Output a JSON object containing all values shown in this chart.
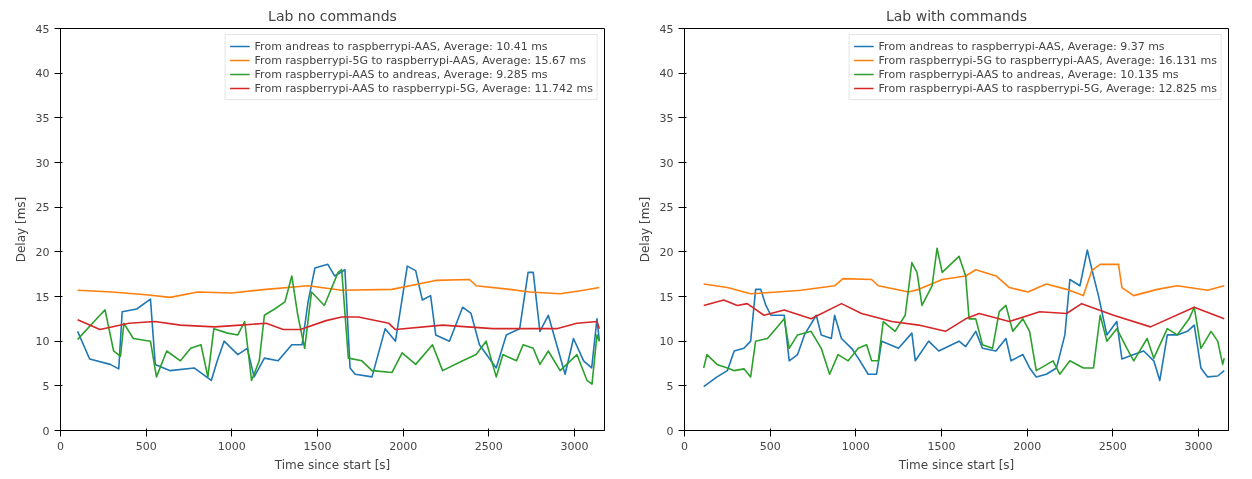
{
  "chart_data": [
    {
      "type": "line",
      "title": "Lab no commands",
      "xlabel": "Time since start [s]",
      "ylabel": "Delay [ms]",
      "xlim": [
        0,
        3175
      ],
      "ylim": [
        0,
        45
      ],
      "xticks": [
        0,
        500,
        1000,
        1500,
        2000,
        2500,
        3000
      ],
      "yticks": [
        0,
        5,
        10,
        15,
        20,
        25,
        30,
        35,
        40,
        45
      ],
      "grid": false,
      "legend": "top right",
      "line_style": "solid",
      "marker": "none",
      "series": [
        {
          "name": "From andreas to raspberrypi-AAS, Average: 10.41 ms",
          "color": "#1f77b4",
          "x": [
            100,
            170,
            290,
            340,
            360,
            445,
            525,
            553,
            640,
            780,
            880,
            915,
            955,
            1035,
            1090,
            1130,
            1190,
            1270,
            1350,
            1410,
            1445,
            1485,
            1560,
            1600,
            1660,
            1690,
            1720,
            1818,
            1895,
            1955,
            2024,
            2073,
            2112,
            2160,
            2190,
            2270,
            2347,
            2396,
            2445,
            2543,
            2602,
            2680,
            2729,
            2759,
            2798,
            2847,
            2896,
            2945,
            2994,
            3053,
            3100,
            3131,
            3145
          ],
          "values": [
            11.1,
            8.0,
            7.4,
            6.9,
            13.3,
            13.6,
            14.7,
            7.4,
            6.7,
            7.0,
            5.6,
            7.8,
            10.0,
            8.5,
            9.2,
            6.0,
            8.1,
            7.8,
            9.6,
            9.6,
            14.4,
            18.2,
            18.6,
            17.3,
            18.0,
            7.0,
            6.3,
            6.0,
            11.4,
            10.0,
            18.4,
            17.9,
            14.6,
            15.1,
            10.7,
            10.0,
            13.8,
            13.1,
            9.6,
            7.0,
            10.7,
            11.4,
            17.7,
            17.7,
            11.1,
            12.9,
            9.6,
            6.3,
            10.3,
            7.8,
            7.0,
            12.5,
            10.0
          ]
        },
        {
          "name": "From raspberrypi-5G to raspberrypi-AAS, Average: 15.67 ms",
          "color": "#ff7f0e",
          "x": [
            100,
            300,
            500,
            640,
            800,
            1000,
            1200,
            1445,
            1641,
            1935,
            2190,
            2387,
            2426,
            2622,
            2739,
            2916,
            3053,
            3145
          ],
          "values": [
            15.7,
            15.5,
            15.2,
            14.9,
            15.5,
            15.4,
            15.8,
            16.2,
            15.7,
            15.8,
            16.8,
            16.9,
            16.2,
            15.8,
            15.5,
            15.3,
            15.7,
            16.0
          ]
        },
        {
          "name": "From raspberrypi-AAS to andreas, Average: 9.285 ms",
          "color": "#2ca02c",
          "x": [
            100,
            230,
            260,
            310,
            350,
            370,
            425,
            525,
            560,
            620,
            700,
            760,
            820,
            860,
            895,
            975,
            1035,
            1075,
            1115,
            1160,
            1190,
            1250,
            1310,
            1350,
            1385,
            1425,
            1465,
            1540,
            1620,
            1641,
            1680,
            1759,
            1818,
            1935,
            1994,
            2073,
            2171,
            2230,
            2347,
            2426,
            2484,
            2543,
            2582,
            2661,
            2700,
            2759,
            2798,
            2847,
            2916,
            3014,
            3073,
            3102,
            3131,
            3145
          ],
          "values": [
            10.2,
            12.9,
            13.5,
            8.9,
            8.3,
            12.0,
            10.3,
            10.0,
            6.0,
            8.9,
            7.8,
            9.2,
            9.6,
            6.0,
            11.4,
            10.9,
            10.7,
            12.2,
            5.6,
            7.8,
            12.9,
            13.6,
            14.4,
            17.3,
            12.9,
            9.2,
            15.5,
            14.0,
            17.7,
            18.0,
            8.1,
            7.8,
            6.7,
            6.5,
            8.7,
            7.4,
            9.6,
            6.7,
            7.8,
            8.5,
            10.0,
            6.0,
            8.5,
            7.8,
            9.6,
            9.2,
            7.4,
            8.9,
            6.7,
            8.5,
            5.6,
            5.2,
            10.7,
            10.0
          ]
        },
        {
          "name": "From raspberrypi-AAS to raspberrypi-5G, Average: 11.742 ms",
          "color": "#d62728",
          "x": [
            100,
            230,
            400,
            550,
            700,
            900,
            1050,
            1200,
            1300,
            1400,
            1550,
            1641,
            1739,
            1916,
            1955,
            2230,
            2523,
            2896,
            3014,
            3131,
            3145
          ],
          "values": [
            12.4,
            11.3,
            12.0,
            12.2,
            11.8,
            11.6,
            11.8,
            12.0,
            11.3,
            11.3,
            12.3,
            12.7,
            12.7,
            12.0,
            11.3,
            11.8,
            11.4,
            11.4,
            12.0,
            12.2,
            11.4
          ]
        }
      ]
    },
    {
      "type": "line",
      "title": "Lab with commands",
      "xlabel": "Time since start [s]",
      "ylabel": "Delay [ms]",
      "xlim": [
        0,
        3175
      ],
      "ylim": [
        0,
        45
      ],
      "xticks": [
        0,
        500,
        1000,
        1500,
        2000,
        2500,
        3000
      ],
      "yticks": [
        0,
        5,
        10,
        15,
        20,
        25,
        30,
        35,
        40,
        45
      ],
      "grid": false,
      "legend": "top right",
      "line_style": "solid",
      "marker": "none",
      "series": [
        {
          "name": "From andreas to raspberrypi-AAS, Average: 9.37 ms",
          "color": "#1f77b4",
          "x": [
            112,
            190,
            250,
            290,
            347,
            386,
            415,
            445,
            475,
            504,
            582,
            611,
            660,
            700,
            769,
            798,
            857,
            876,
            916,
            975,
            1014,
            1072,
            1121,
            1151,
            1249,
            1327,
            1347,
            1425,
            1484,
            1602,
            1641,
            1700,
            1739,
            1818,
            1876,
            1906,
            1975,
            2014,
            2053,
            2112,
            2171,
            2220,
            2249,
            2308,
            2351,
            2387,
            2416,
            2465,
            2523,
            2553,
            2622,
            2680,
            2739,
            2774,
            2818,
            2876,
            2935,
            2975,
            3014,
            3053,
            3112,
            3150
          ],
          "values": [
            4.9,
            6.0,
            6.7,
            8.9,
            9.2,
            10.0,
            15.8,
            15.8,
            14.0,
            12.9,
            12.9,
            7.8,
            8.5,
            10.7,
            12.9,
            10.7,
            10.3,
            12.9,
            10.3,
            9.2,
            8.1,
            6.3,
            6.3,
            10.0,
            9.2,
            10.9,
            7.8,
            10.0,
            8.9,
            10.0,
            9.4,
            11.1,
            9.2,
            8.9,
            10.3,
            7.8,
            8.5,
            7.0,
            6.0,
            6.3,
            7.0,
            10.7,
            16.9,
            16.2,
            20.2,
            17.3,
            15.1,
            10.7,
            12.2,
            8.0,
            8.5,
            8.9,
            7.8,
            5.6,
            10.7,
            10.7,
            11.1,
            11.8,
            7.0,
            6.0,
            6.1,
            6.7
          ]
        },
        {
          "name": "From raspberrypi-5G to raspberrypi-AAS, Average: 16.131 ms",
          "color": "#ff7f0e",
          "x": [
            112,
            250,
            386,
            543,
            680,
            876,
            925,
            1092,
            1131,
            1308,
            1367,
            1504,
            1641,
            1700,
            1818,
            1896,
            2004,
            2112,
            2230,
            2328,
            2377,
            2426,
            2533,
            2553,
            2622,
            2759,
            2876,
            3053,
            3150
          ],
          "values": [
            16.4,
            16.0,
            15.3,
            15.5,
            15.7,
            16.2,
            17.0,
            16.9,
            16.2,
            15.5,
            15.8,
            16.9,
            17.3,
            18.0,
            17.3,
            16.0,
            15.5,
            16.4,
            15.8,
            15.1,
            17.9,
            18.6,
            18.6,
            16.0,
            15.1,
            15.8,
            16.2,
            15.7,
            16.2
          ]
        },
        {
          "name": "From raspberrypi-AAS to andreas, Average: 10.135 ms",
          "color": "#2ca02c",
          "x": [
            112,
            131,
            190,
            250,
            290,
            347,
            386,
            415,
            484,
            533,
            582,
            611,
            660,
            739,
            798,
            847,
            896,
            955,
            1014,
            1063,
            1092,
            1131,
            1160,
            1229,
            1288,
            1327,
            1357,
            1386,
            1445,
            1474,
            1504,
            1602,
            1641,
            1661,
            1700,
            1739,
            1798,
            1837,
            1876,
            1916,
            1975,
            2014,
            2053,
            2151,
            2190,
            2249,
            2328,
            2387,
            2426,
            2465,
            2523,
            2582,
            2622,
            2700,
            2739,
            2818,
            2876,
            2945,
            2975,
            3014,
            3073,
            3112,
            3141,
            3150
          ],
          "values": [
            7.0,
            8.5,
            7.4,
            7.0,
            6.7,
            6.9,
            6.0,
            10.0,
            10.3,
            11.4,
            12.5,
            9.2,
            10.7,
            11.1,
            9.2,
            6.3,
            8.5,
            7.8,
            9.2,
            9.6,
            7.8,
            7.8,
            12.2,
            11.1,
            12.9,
            18.8,
            17.7,
            14.0,
            16.2,
            20.4,
            17.7,
            19.5,
            17.3,
            12.5,
            12.5,
            9.6,
            9.2,
            13.3,
            14.0,
            11.1,
            12.5,
            11.1,
            6.7,
            7.8,
            6.3,
            7.8,
            7.0,
            7.0,
            12.9,
            10.0,
            11.4,
            9.2,
            7.8,
            10.3,
            8.1,
            11.4,
            10.7,
            12.5,
            13.8,
            9.2,
            11.1,
            10.0,
            7.4,
            8.1
          ]
        },
        {
          "name": "From raspberrypi-AAS to raspberrypi-5G, Average: 12.825 ms",
          "color": "#d62728",
          "x": [
            112,
            229,
            308,
            366,
            464,
            582,
            739,
            916,
            1033,
            1210,
            1367,
            1523,
            1641,
            1720,
            1896,
            2073,
            2230,
            2318,
            2504,
            2720,
            2975,
            3150
          ],
          "values": [
            14.0,
            14.6,
            14.0,
            14.2,
            12.9,
            13.5,
            12.5,
            14.2,
            13.1,
            12.2,
            11.8,
            11.1,
            12.5,
            13.1,
            12.2,
            13.3,
            13.1,
            14.2,
            12.9,
            11.6,
            13.8,
            12.5
          ]
        }
      ]
    }
  ]
}
